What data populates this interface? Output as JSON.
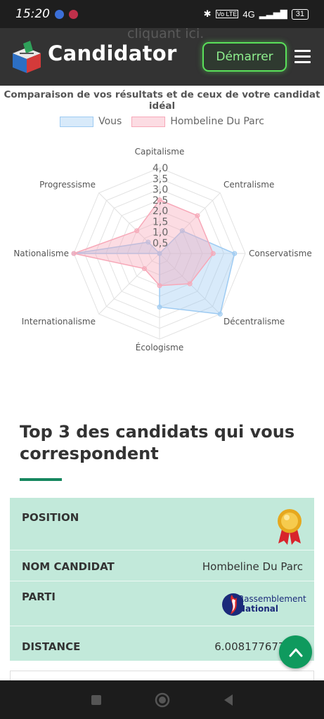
{
  "status_bar": {
    "time": "15:20",
    "network": "4G",
    "battery": "31",
    "volte": "Vo LTE"
  },
  "header": {
    "behind_text": "cliquant ici.",
    "brand": "Candidator",
    "start_button": "Démarrer"
  },
  "chart_data": {
    "type": "radar",
    "title": "Comparaison de vos résultats et de ceux de votre candidat idéal",
    "axes": [
      "Capitalisme",
      "Centralisme",
      "Conservatisme",
      "Décentralisme",
      "Écologisme",
      "Internationalisme",
      "Nationalisme",
      "Progressisme"
    ],
    "ticks": [
      "0,5",
      "1,0",
      "1,5",
      "2,0",
      "2,5",
      "3,0",
      "3,5",
      "4,0"
    ],
    "rmax": 4,
    "series": [
      {
        "name": "Vous",
        "values": [
          0.0,
          1.5,
          3.5,
          4.0,
          2.5,
          0.0,
          4.0,
          0.75
        ],
        "color": "#9ecbf2"
      },
      {
        "name": "Hombeline Du Parc",
        "values": [
          2.5,
          2.5,
          2.5,
          2.0,
          1.5,
          1.0,
          4.0,
          1.5
        ],
        "color": "#f7a8b8"
      }
    ],
    "legend_position": "top"
  },
  "top3": {
    "title": "Top 3 des candidats qui vous correspondent",
    "rows": [
      {
        "label": "POSITION",
        "value": ""
      },
      {
        "label": "NOM CANDIDAT",
        "value": "Hombeline Du Parc"
      },
      {
        "label": "PARTI",
        "value": ""
      },
      {
        "label": "DISTANCE",
        "value": "6.0081776771"
      }
    ],
    "party_logo": {
      "line1": "Rassemblement",
      "line2": "National"
    }
  }
}
